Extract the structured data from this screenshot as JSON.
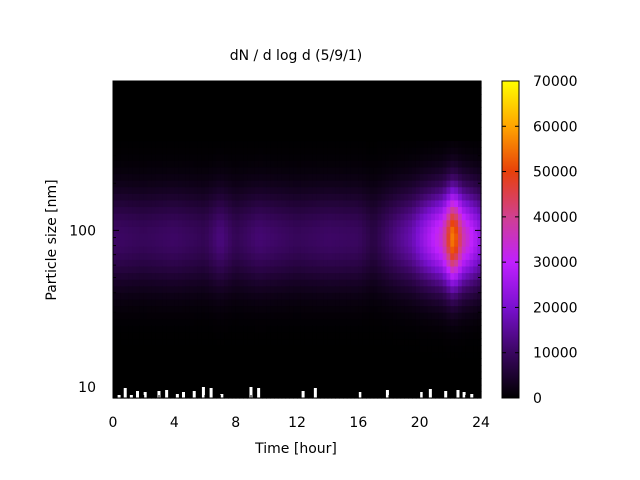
{
  "chart_data": {
    "type": "heatmap",
    "title": "dN / d log d (5/9/1)",
    "xlabel": "Time [hour]",
    "ylabel": "Particle size [nm]",
    "xlim": [
      0,
      24
    ],
    "ylim": [
      8.5,
      900
    ],
    "yscale": "log",
    "x_ticks": [
      0,
      4,
      8,
      12,
      16,
      20,
      24
    ],
    "y_ticks": [
      10,
      100
    ],
    "colorbar": {
      "range": [
        0,
        70000
      ],
      "ticks": [
        0,
        10000,
        20000,
        30000,
        40000,
        50000,
        60000,
        70000
      ],
      "colormap": [
        "#000000",
        "#3a0660",
        "#7a10d0",
        "#c020ff",
        "#d04090",
        "#e8400a",
        "#ffa500",
        "#ffff00"
      ]
    },
    "daily_profile_by_hour": [
      {
        "hour": 0,
        "scale": 0.18
      },
      {
        "hour": 2,
        "scale": 0.16
      },
      {
        "hour": 4,
        "scale": 0.18
      },
      {
        "hour": 6,
        "scale": 0.15
      },
      {
        "hour": 7,
        "scale": 0.22
      },
      {
        "hour": 8,
        "scale": 0.15
      },
      {
        "hour": 9.5,
        "scale": 0.2
      },
      {
        "hour": 12,
        "scale": 0.16
      },
      {
        "hour": 14,
        "scale": 0.18
      },
      {
        "hour": 16,
        "scale": 0.17
      },
      {
        "hour": 17,
        "scale": 0.12
      },
      {
        "hour": 19.5,
        "scale": 0.3
      },
      {
        "hour": 20.5,
        "scale": 0.45
      },
      {
        "hour": 21.5,
        "scale": 0.6
      },
      {
        "hour": 22.2,
        "scale": 1.0
      },
      {
        "hour": 22.8,
        "scale": 0.65
      },
      {
        "hour": 23.5,
        "scale": 0.5
      },
      {
        "hour": 24,
        "scale": 0.4
      }
    ],
    "peak": {
      "hour": 22.2,
      "size_nm": 90,
      "value": 58000
    }
  }
}
